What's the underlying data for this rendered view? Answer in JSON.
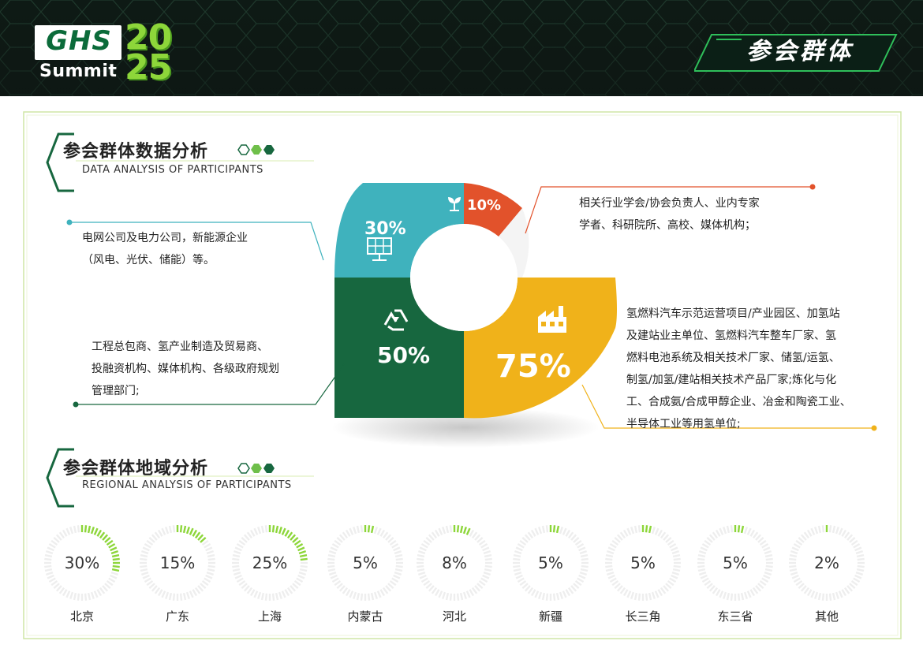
{
  "header": {
    "logo_text": "GHS",
    "logo_sub": "Summit",
    "logo_year_top": "20",
    "logo_year_bottom": "25",
    "title": "参会群体"
  },
  "section1": {
    "title": "参会群体数据分析",
    "subtitle": "DATA ANALYSIS OF PARTICIPANTS"
  },
  "section2": {
    "title": "参会群体地域分析",
    "subtitle": "REGIONAL ANALYSIS OF PARTICIPANTS"
  },
  "donut": {
    "segments": [
      {
        "label": "10%",
        "value": 10,
        "color": "#e2522b",
        "icon": "sprout-icon"
      },
      {
        "label": "75%",
        "value": 75,
        "color": "#f0b21a",
        "icon": "factory-icon"
      },
      {
        "label": "50%",
        "value": 50,
        "color": "#17673f",
        "icon": "recycle-icon"
      },
      {
        "label": "30%",
        "value": 30,
        "color": "#3fb2bd",
        "icon": "solar-panel-icon"
      }
    ]
  },
  "descriptions": {
    "top_right_line1": "相关行业学会/协会负责人、业内专家",
    "top_right_line2": "学者、科研院所、高校、媒体机构；",
    "left_top_line1": "电网公司及电力公司，新能源企业",
    "left_top_line2": "（风电、光伏、储能）等。",
    "left_bottom_line1": "工程总包商、氢产业制造及贸易商、",
    "left_bottom_line2": "投融资机构、媒体机构、各级政府规划",
    "left_bottom_line3": "管理部门;",
    "right_bottom_line1": "氢燃料汽车示范运营项目/产业园区、加氢站",
    "right_bottom_line2": "及建站业主单位、氢燃料汽车整车厂家、氢",
    "right_bottom_line3": "燃料电池系统及相关技术厂家、储氢/运氢、",
    "right_bottom_line4": "制氢/加氢/建站相关技术产品厂家;炼化与化",
    "right_bottom_line5": "工、合成氨/合成甲醇企业、冶金和陶瓷工业、",
    "right_bottom_line6": "半导体工业等用氢单位;"
  },
  "regions": [
    {
      "name": "北京",
      "pct_label": "30%",
      "value": 30
    },
    {
      "name": "广东",
      "pct_label": "15%",
      "value": 15
    },
    {
      "name": "上海",
      "pct_label": "25%",
      "value": 25
    },
    {
      "name": "内蒙古",
      "pct_label": "5%",
      "value": 5
    },
    {
      "name": "河北",
      "pct_label": "8%",
      "value": 8
    },
    {
      "name": "新疆",
      "pct_label": "5%",
      "value": 5
    },
    {
      "name": "长三角",
      "pct_label": "5%",
      "value": 5
    },
    {
      "name": "东三省",
      "pct_label": "5%",
      "value": 5
    },
    {
      "name": "其他",
      "pct_label": "2%",
      "value": 2
    }
  ],
  "colors": {
    "accent_green": "#8dd63a",
    "ring_track": "#eeeeee",
    "dark_green": "#17673f",
    "teal": "#3fb2bd",
    "orange_red": "#e2522b",
    "yellow": "#f0b21a"
  }
}
